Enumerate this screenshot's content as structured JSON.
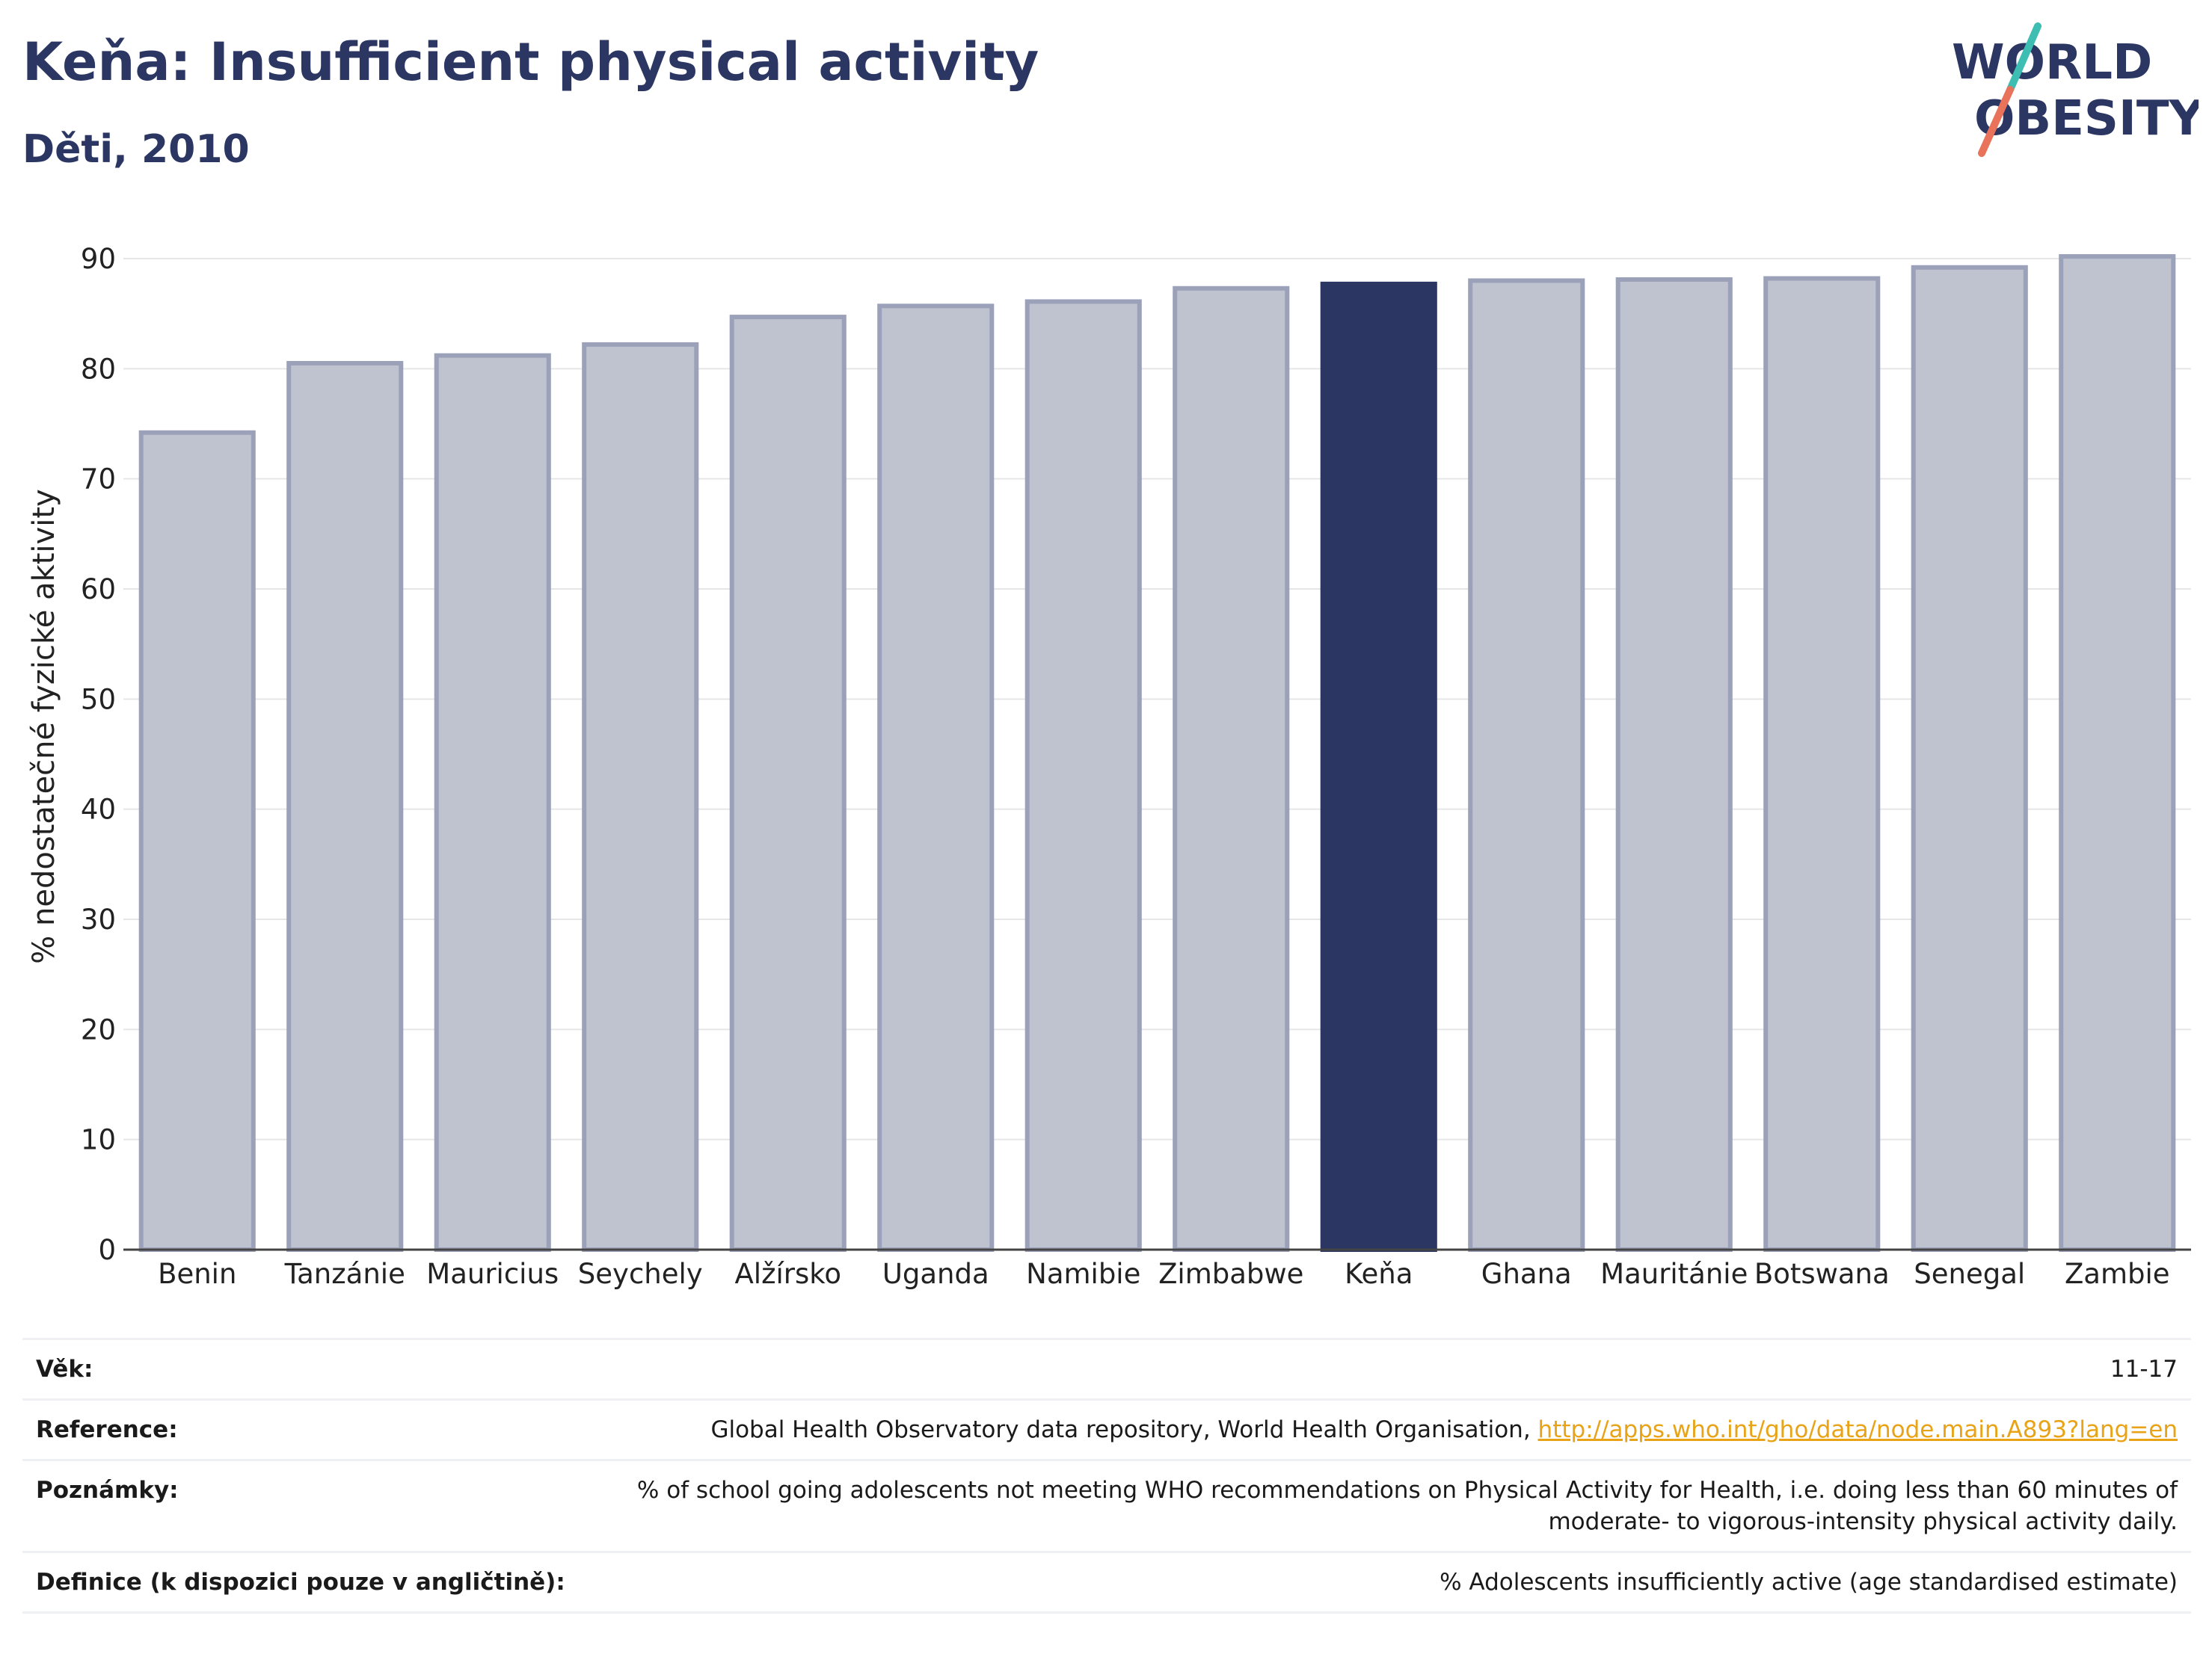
{
  "header": {
    "title": "Keňa: Insufficient physical activity",
    "subtitle": "Děti, 2010"
  },
  "logo": {
    "line1": "WORLD",
    "line2": "OBESITY",
    "colors": {
      "text": "#2b3663",
      "slash_teal": "#3ebdb2",
      "slash_coral": "#e8735a"
    }
  },
  "chart_data": {
    "type": "bar",
    "categories": [
      "Benin",
      "Tanzánie",
      "Mauricius",
      "Seychely",
      "Alžírsko",
      "Uganda",
      "Namibie",
      "Zimbabwe",
      "Keňa",
      "Ghana",
      "Mauritánie",
      "Botswana",
      "Senegal",
      "Zambie"
    ],
    "values": [
      74.2,
      80.5,
      81.2,
      82.2,
      84.7,
      85.7,
      86.1,
      87.3,
      87.7,
      88.0,
      88.1,
      88.2,
      89.2,
      90.2
    ],
    "highlight": "Keňa",
    "ylabel": "% nedostatečné fyzické aktivity",
    "xlabel": "",
    "ylim": [
      0,
      90
    ],
    "yticks": [
      0,
      10,
      20,
      30,
      40,
      50,
      60,
      70,
      80,
      90
    ],
    "grid": true,
    "colors": {
      "bar": "#bfc2cf",
      "bar_border": "#9ba1b8",
      "highlight": "#2b3663",
      "grid": "#e6e6e6",
      "axis": "#444444"
    }
  },
  "meta": {
    "age_label": "Věk:",
    "age_value": "11-17",
    "reference_label": "Reference:",
    "reference_text": "Global Health Observatory data repository, World Health Organisation, ",
    "reference_link": "http://apps.who.int/gho/data/node.main.A893?lang=en",
    "notes_label": "Poznámky:",
    "notes_value": "% of school going adolescents not meeting WHO recommendations on Physical Activity for Health, i.e. doing less than 60 minutes of moderate- to vigorous-intensity physical activity daily.",
    "definition_label": "Definice (k dispozici pouze v angličtině):",
    "definition_value": "% Adolescents insufficiently active (age standardised estimate)"
  }
}
